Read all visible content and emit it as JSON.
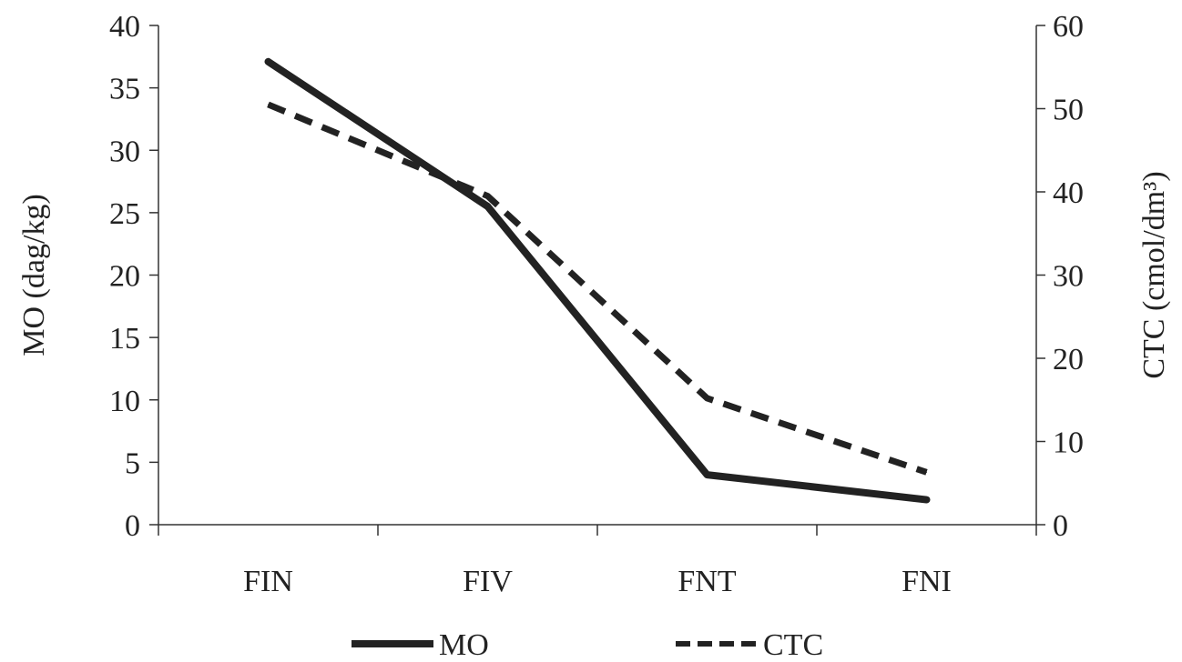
{
  "chart_data": {
    "type": "line",
    "categories": [
      "FIN",
      "FIV",
      "FNT",
      "FNI"
    ],
    "series": [
      {
        "name": "MO",
        "axis": "left",
        "values": [
          37.1,
          25.5,
          4.0,
          2.0
        ],
        "line_style": "solid",
        "color": "#222222"
      },
      {
        "name": "CTC",
        "axis": "right",
        "values": [
          50.5,
          39.5,
          15.2,
          6.3
        ],
        "line_style": "dashed",
        "color": "#222222"
      }
    ],
    "ylabel_left": "MO (dag/kg)",
    "ylabel_right": "CTC (cmol/dm³)",
    "ylim_left": [
      0,
      40
    ],
    "ylim_right": [
      0,
      60
    ],
    "yticks_left": [
      "0",
      "5",
      "10",
      "15",
      "20",
      "25",
      "30",
      "35",
      "40"
    ],
    "yticks_right": [
      "0",
      "10",
      "20",
      "30",
      "40",
      "50",
      "60"
    ],
    "legend_position": "bottom-center",
    "grid": false
  }
}
